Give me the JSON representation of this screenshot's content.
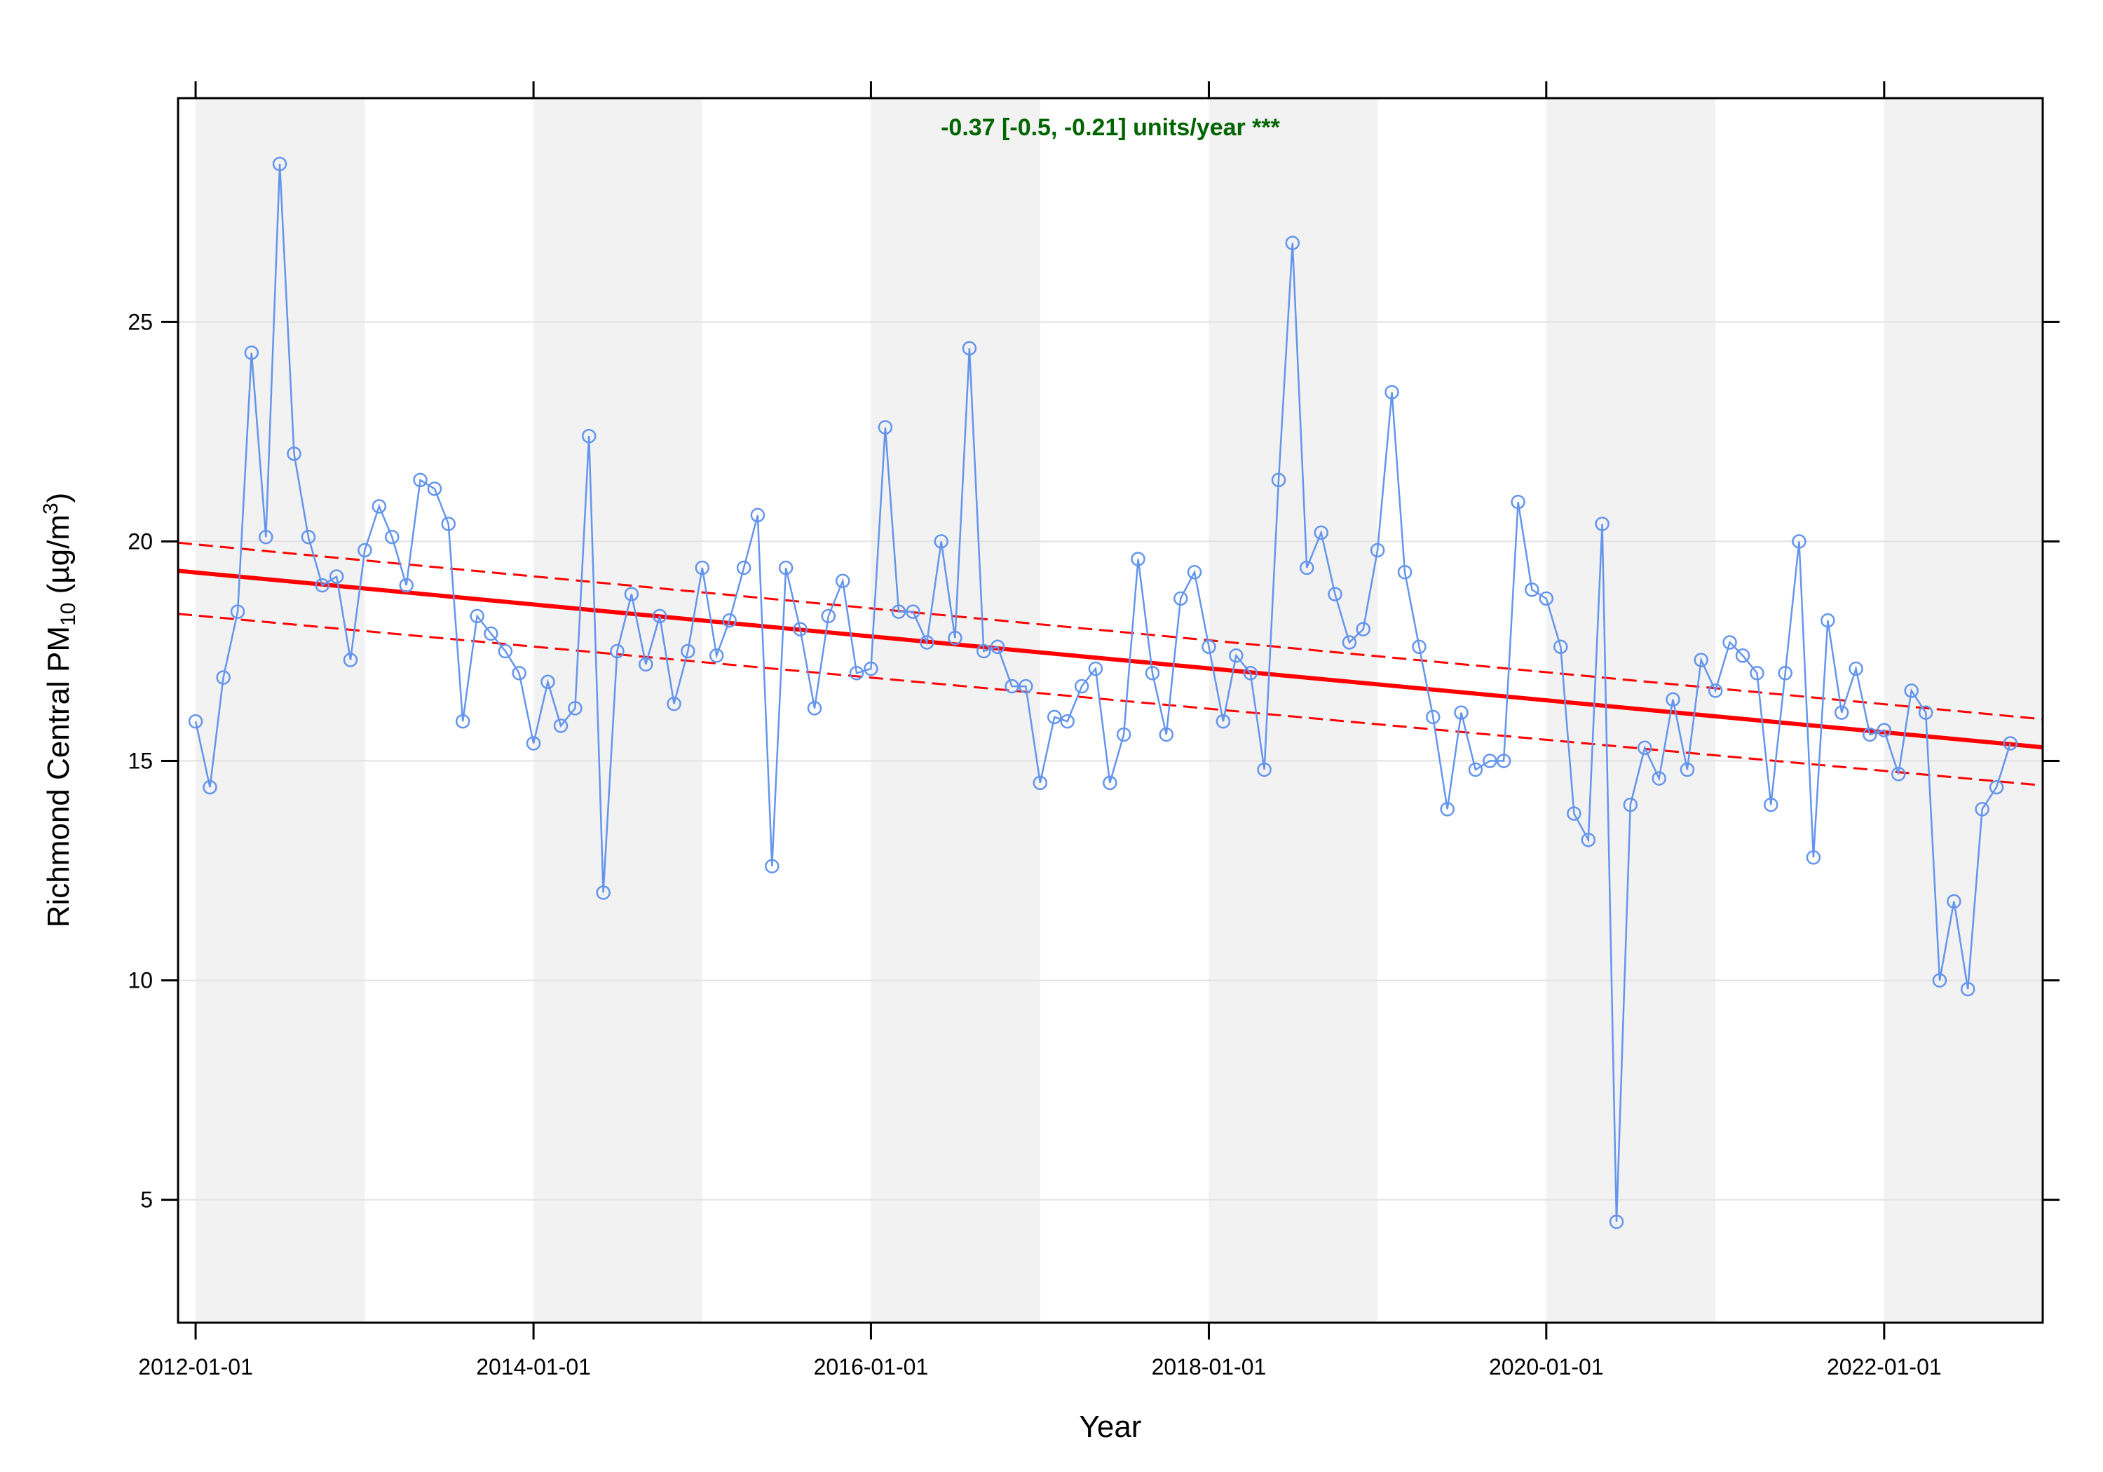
{
  "chart_data": {
    "type": "line",
    "xlabel": "Year",
    "ylabel": {
      "prefix": "Richmond Central PM",
      "sub": "10",
      "unit_open": " (µg/m",
      "sup": "3",
      "unit_close": ")"
    },
    "annotation": "-0.37 [-0.5, -0.21] units/year ***",
    "x_ticks": [
      "2012-01-01",
      "2014-01-01",
      "2016-01-01",
      "2018-01-01",
      "2020-01-01",
      "2022-01-01"
    ],
    "y_ticks": [
      5,
      10,
      15,
      20,
      25
    ],
    "xlim": [
      "2011-11-24",
      "2022-12-10"
    ],
    "ylim": [
      2.2,
      30.1
    ],
    "shaded_years": [
      2012,
      2014,
      2016,
      2018,
      2020,
      2022
    ],
    "grid": "horizontal",
    "series": [
      {
        "color": "#6495ED",
        "start": "2012-01",
        "values": [
          15.9,
          14.4,
          16.9,
          18.4,
          24.3,
          20.1,
          28.6,
          22.0,
          20.1,
          19.0,
          19.2,
          17.3,
          19.8,
          20.8,
          20.1,
          19.0,
          21.4,
          21.2,
          20.4,
          15.9,
          18.3,
          17.9,
          17.5,
          17.0,
          15.4,
          16.8,
          15.8,
          16.2,
          22.4,
          12.0,
          17.5,
          18.8,
          17.2,
          18.3,
          16.3,
          17.5,
          19.4,
          17.4,
          18.2,
          19.4,
          20.6,
          12.6,
          19.4,
          18.0,
          16.2,
          18.3,
          19.1,
          17.0,
          17.1,
          22.6,
          18.4,
          18.4,
          17.7,
          20.0,
          17.8,
          24.4,
          17.5,
          17.6,
          16.7,
          16.7,
          14.5,
          16.0,
          15.9,
          16.7,
          17.1,
          14.5,
          15.6,
          19.6,
          17.0,
          15.6,
          18.7,
          19.3,
          17.6,
          15.9,
          17.4,
          17.0,
          14.8,
          21.4,
          26.8,
          19.4,
          20.2,
          18.8,
          17.7,
          18.0,
          19.8,
          23.4,
          19.3,
          17.6,
          16.0,
          13.9,
          16.1,
          14.8,
          15.0,
          15.0,
          20.9,
          18.9,
          18.7,
          17.6,
          13.8,
          13.2,
          20.4,
          4.5,
          14.0,
          15.3,
          14.6,
          16.4,
          14.8,
          17.3,
          16.6,
          17.7,
          17.4,
          17.0,
          14.0,
          17.0,
          20.0,
          12.8,
          18.2,
          16.1,
          17.1,
          15.6,
          15.7,
          14.7,
          16.6,
          16.1,
          10.0,
          11.8,
          9.8,
          13.9,
          14.4,
          15.4
        ]
      }
    ],
    "trend": {
      "color": "#FF0000",
      "fit": {
        "start": "2011-11-24",
        "end": "2022-12-10",
        "y_start": 19.33,
        "y_end": 15.31
      },
      "upper": {
        "start": "2011-11-24",
        "end": "2022-12-10",
        "y_start": 19.97,
        "y_end": 15.95
      },
      "lower": {
        "start": "2011-11-24",
        "end": "2022-12-10",
        "y_start": 18.35,
        "y_end": 14.44
      }
    }
  }
}
